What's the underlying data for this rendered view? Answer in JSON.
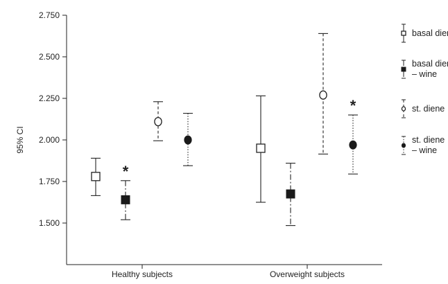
{
  "chart_data": {
    "type": "errorbar",
    "ylabel": "95% CI",
    "xlabel": "",
    "ylim": [
      1.25,
      2.75
    ],
    "yticks": [
      "1.500",
      "1.750",
      "2.000",
      "2.250",
      "2.500",
      "2.750"
    ],
    "ytick_values": [
      1.5,
      1.75,
      2.0,
      2.25,
      2.5,
      2.75
    ],
    "categories": [
      "Healthy subjects",
      "Overweight subjects"
    ],
    "grid": false,
    "legend_position": "right",
    "series": [
      {
        "name": "basal diene",
        "marker": "open-square",
        "line": "solid",
        "points": [
          {
            "mean": 1.78,
            "low": 1.665,
            "high": 1.89,
            "star": false
          },
          {
            "mean": 1.95,
            "low": 1.625,
            "high": 2.265,
            "star": false
          }
        ]
      },
      {
        "name": "basal diene – wine",
        "marker": "filled-square",
        "line": "dashdot",
        "points": [
          {
            "mean": 1.64,
            "low": 1.52,
            "high": 1.755,
            "star": true
          },
          {
            "mean": 1.675,
            "low": 1.485,
            "high": 1.86,
            "star": false
          }
        ]
      },
      {
        "name": "st. diene",
        "marker": "open-circle",
        "line": "dashed",
        "points": [
          {
            "mean": 2.11,
            "low": 1.995,
            "high": 2.23,
            "star": false
          },
          {
            "mean": 2.27,
            "low": 1.915,
            "high": 2.64,
            "star": false
          }
        ]
      },
      {
        "name": "st. diene – wine",
        "marker": "filled-circle",
        "line": "dotted",
        "points": [
          {
            "mean": 2.0,
            "low": 1.845,
            "high": 2.16,
            "star": false
          },
          {
            "mean": 1.97,
            "low": 1.795,
            "high": 2.15,
            "star": true
          }
        ]
      }
    ],
    "annotation": "*"
  }
}
